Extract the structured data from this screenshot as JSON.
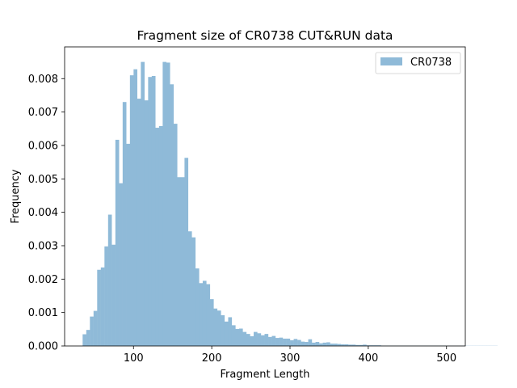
{
  "chart_data": {
    "type": "bar",
    "title": "Fragment size of CR0738 CUT&RUN data",
    "xlabel": "Fragment Length",
    "ylabel": "Frequency",
    "xlim": [
      12,
      524
    ],
    "ylim": [
      0,
      0.00895
    ],
    "xticks": [
      100,
      200,
      300,
      400,
      500
    ],
    "xtick_labels": [
      "100",
      "200",
      "300",
      "400",
      "500"
    ],
    "yticks": [
      0.0,
      0.001,
      0.002,
      0.003,
      0.004,
      0.005,
      0.006,
      0.007,
      0.008
    ],
    "ytick_labels": [
      "0.000",
      "0.001",
      "0.002",
      "0.003",
      "0.004",
      "0.005",
      "0.006",
      "0.007",
      "0.008"
    ],
    "grid": false,
    "legend_position": "top-right",
    "bin_start": 35,
    "bin_width": 4.65,
    "bar_color": "#8fbad8",
    "series": [
      {
        "name": "CR0738",
        "values": [
          0.00035,
          0.00048,
          0.00088,
          0.00105,
          0.00228,
          0.00235,
          0.00298,
          0.00393,
          0.00303,
          0.00617,
          0.00487,
          0.0073,
          0.00605,
          0.0081,
          0.00828,
          0.0074,
          0.0085,
          0.00735,
          0.00805,
          0.00808,
          0.00653,
          0.00658,
          0.0085,
          0.00848,
          0.00783,
          0.00665,
          0.00505,
          0.00505,
          0.00563,
          0.00343,
          0.00325,
          0.00232,
          0.00188,
          0.00195,
          0.00185,
          0.0014,
          0.00112,
          0.00106,
          0.00092,
          0.00073,
          0.00086,
          0.00062,
          0.00051,
          0.00052,
          0.00042,
          0.00036,
          0.00029,
          0.00042,
          0.00038,
          0.00032,
          0.00036,
          0.00027,
          0.0003,
          0.00024,
          0.00025,
          0.00022,
          0.00022,
          0.00017,
          0.00021,
          0.00018,
          0.00013,
          0.00012,
          0.0002,
          0.0001,
          0.00012,
          8e-05,
          0.0001,
          0.00011,
          7e-05,
          7e-05,
          6e-05,
          5e-05,
          5e-05,
          4e-05,
          4e-05,
          3e-05,
          3e-05,
          4e-05,
          2e-05,
          2e-05,
          2e-05,
          2e-05,
          1e-05,
          1e-05,
          1e-05,
          1e-05,
          1e-05,
          1e-05,
          1e-05,
          1e-05,
          1e-05,
          1e-05,
          1e-05,
          1e-05,
          1e-05,
          1e-05,
          1e-05,
          1e-05,
          1e-05,
          1e-05,
          5e-06,
          5e-06,
          5e-06,
          5e-06,
          5e-06,
          5e-06,
          5e-06,
          5e-06,
          5e-06,
          5e-06,
          5e-06,
          5e-06,
          5e-06,
          5e-06
        ]
      }
    ]
  }
}
